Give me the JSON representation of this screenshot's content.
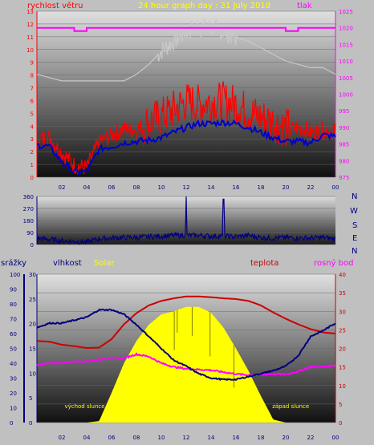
{
  "colors": {
    "background": "#c0c0c0",
    "wind": "#ff0000",
    "wind_avg": "#0000cc",
    "pressure": "#ff00ff",
    "pressure_avg": "#c8c8c8",
    "direction": "#000080",
    "humidity": "#000080",
    "solar_label": "#ffff00",
    "solar_fill": "#ffff00",
    "temperature": "#cc0000",
    "dewpoint": "#ff00ff"
  },
  "header": {
    "left_label": "rychlost větru",
    "center_label": "24 hour graph day : 31 July 2018",
    "right_label": "tlak"
  },
  "direction_letters": [
    "N",
    "W",
    "S",
    "E",
    "N"
  ],
  "bottom_header": {
    "rain_label": "srážky",
    "humidity_label": "vlhkost",
    "solar_label": "Solar",
    "temp_label": "teplota",
    "dew_label": "rosný bod"
  },
  "annotations": {
    "sunrise": "východ slunce",
    "sunset": "západ slunce"
  },
  "chart_data": [
    {
      "type": "line",
      "ylim_left": [
        0,
        13
      ],
      "ylim_right": [
        975,
        1025
      ],
      "y_ticks_left": [
        "0",
        "1",
        "2",
        "3",
        "4",
        "5",
        "6",
        "7",
        "8",
        "9",
        "10",
        "11",
        "12",
        "13"
      ],
      "y_ticks_right": [
        "975",
        "980",
        "985",
        "990",
        "995",
        "1000",
        "1005",
        "1010",
        "1015",
        "1020",
        "1025"
      ],
      "x_ticks": [
        "02",
        "04",
        "06",
        "08",
        "10",
        "12",
        "14",
        "16",
        "18",
        "20",
        "22",
        "00"
      ],
      "x": [
        0,
        1,
        2,
        3,
        4,
        5,
        6,
        7,
        8,
        9,
        10,
        11,
        12,
        13,
        14,
        15,
        16,
        17,
        18,
        19,
        20,
        21,
        22,
        23,
        24
      ],
      "series": [
        {
          "name": "rychlost větru",
          "axis": "left",
          "style": "gust",
          "values": [
            2.8,
            3.0,
            1.8,
            0.8,
            0.6,
            2.6,
            3.2,
            3.6,
            3.6,
            4.0,
            4.4,
            5.0,
            5.6,
            5.4,
            5.6,
            5.6,
            5.4,
            4.8,
            4.4,
            4.0,
            3.5,
            3.8,
            3.4,
            3.5,
            3.5
          ]
        },
        {
          "name": "",
          "axis": "left",
          "style": "avg",
          "values": [
            2.5,
            2.4,
            1.2,
            0.4,
            0.4,
            2.2,
            2.4,
            2.7,
            2.8,
            2.9,
            3.1,
            3.5,
            3.9,
            4.2,
            4.2,
            4.3,
            4.2,
            3.9,
            3.5,
            3.1,
            2.8,
            2.8,
            2.7,
            3.3,
            3.2
          ]
        },
        {
          "name": "tlak",
          "axis": "right",
          "style": "pressure",
          "values": [
            1020,
            1020,
            1020,
            1019,
            1020,
            1020,
            1020,
            1020,
            1020,
            1020,
            1020,
            1020,
            1020,
            1020,
            1020,
            1020,
            1020,
            1020,
            1020,
            1020,
            1019,
            1020,
            1020,
            1020,
            1020
          ]
        },
        {
          "name": "",
          "axis": "right",
          "style": "pressure_trend",
          "values": [
            1006,
            1005,
            1004,
            1004,
            1004,
            1004,
            1004,
            1004,
            1006,
            1009,
            1013,
            1016,
            1019,
            1020,
            1020,
            1019,
            1017,
            1016,
            1014,
            1012,
            1010,
            1009,
            1008,
            1008,
            1006
          ]
        }
      ]
    },
    {
      "type": "line",
      "ylim": [
        0,
        360
      ],
      "y_ticks": [
        "0",
        "90",
        "180",
        "270",
        "360"
      ],
      "x": [
        0,
        1,
        2,
        3,
        4,
        5,
        6,
        7,
        8,
        9,
        10,
        11,
        12,
        13,
        14,
        15,
        16,
        17,
        18,
        19,
        20,
        21,
        22,
        23,
        24
      ],
      "series": [
        {
          "name": "",
          "values": [
            40,
            30,
            20,
            15,
            10,
            35,
            40,
            45,
            45,
            50,
            55,
            60,
            360,
            60,
            55,
            340,
            50,
            60,
            45,
            40,
            45,
            40,
            40,
            45,
            35
          ]
        }
      ]
    },
    {
      "type": "area",
      "ylim_left": [
        0,
        100
      ],
      "ylim_right": [
        0,
        40
      ],
      "y_ticks_rain": [
        "0",
        "10",
        "20",
        "30",
        "40",
        "50",
        "60",
        "70",
        "80",
        "90",
        "100"
      ],
      "y_ticks_humidity": [
        "0",
        "5",
        "10",
        "15",
        "20",
        "25",
        "30"
      ],
      "y_ticks_right": [
        "0",
        "5",
        "10",
        "15",
        "20",
        "25",
        "30",
        "35",
        "40"
      ],
      "x_ticks": [
        "02",
        "04",
        "06",
        "08",
        "10",
        "12",
        "14",
        "16",
        "18",
        "20",
        "22",
        "00"
      ],
      "x": [
        0,
        1,
        2,
        3,
        4,
        5,
        6,
        7,
        8,
        9,
        10,
        11,
        12,
        13,
        14,
        15,
        16,
        17,
        18,
        19,
        20,
        21,
        22,
        23,
        24
      ],
      "series": [
        {
          "name": "vlhkost",
          "axis": "left",
          "values": [
            64,
            67,
            67,
            69,
            71,
            76,
            76,
            73,
            66,
            58,
            50,
            42,
            38,
            33,
            30,
            29,
            29,
            31,
            33,
            35,
            38,
            45,
            58,
            62,
            67
          ]
        },
        {
          "name": "Solar",
          "axis": "left",
          "style": "fill",
          "values": [
            0,
            0,
            0,
            0,
            0,
            1,
            20,
            40,
            55,
            66,
            73,
            75,
            78,
            78,
            74,
            64,
            50,
            35,
            18,
            2,
            0,
            0,
            0,
            0,
            0
          ]
        },
        {
          "name": "teplota",
          "axis": "right",
          "values": [
            22,
            21.8,
            21,
            20.6,
            20.1,
            20.2,
            22.5,
            26.5,
            29.5,
            31.6,
            32.8,
            33.5,
            34,
            34,
            33.8,
            33.5,
            33.3,
            32.8,
            31.6,
            29.7,
            28,
            26.5,
            25.2,
            24.3,
            24
          ]
        },
        {
          "name": "rosný bod",
          "axis": "right",
          "values": [
            15.6,
            15.9,
            16.1,
            16.5,
            16.5,
            17,
            17.3,
            17.4,
            18.4,
            17.8,
            16,
            15,
            14.5,
            14.3,
            14.1,
            13.6,
            13.1,
            12.8,
            12.9,
            13.1,
            13,
            13.8,
            15,
            15,
            15.5
          ]
        }
      ]
    }
  ]
}
